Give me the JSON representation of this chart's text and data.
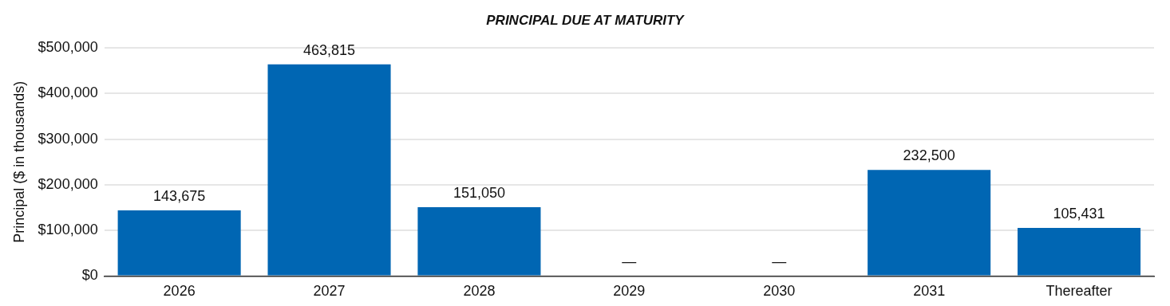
{
  "chart_data": {
    "type": "bar",
    "title": "PRINCIPAL DUE AT MATURITY",
    "ylabel": "Principal ($ in thousands)",
    "categories": [
      "2026",
      "2027",
      "2028",
      "2029",
      "2030",
      "2031",
      "Thereafter"
    ],
    "values": [
      143675,
      463815,
      151050,
      0,
      0,
      232500,
      105431
    ],
    "value_labels": [
      "143,675",
      "463,815",
      "151,050",
      "—",
      "—",
      "232,500",
      "105,431"
    ],
    "color": "#0066b3",
    "ylim": [
      0,
      500000
    ],
    "yticks": [
      {
        "value": 0,
        "label": "$0"
      },
      {
        "value": 100000,
        "label": "$100,000"
      },
      {
        "value": 200000,
        "label": "$200,000"
      },
      {
        "value": 300000,
        "label": "$300,000"
      },
      {
        "value": 400000,
        "label": "$400,000"
      },
      {
        "value": 500000,
        "label": "$500,000"
      }
    ],
    "grid": "y",
    "legend": false
  }
}
